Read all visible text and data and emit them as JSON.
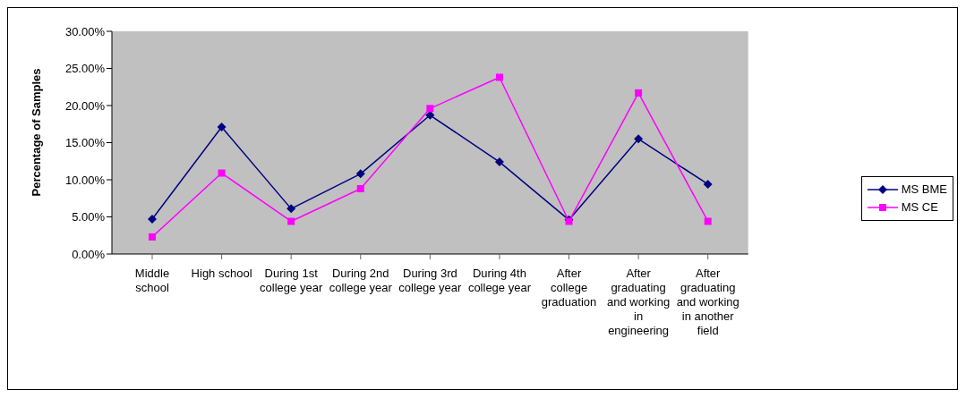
{
  "chart_data": {
    "type": "line",
    "ylabel": "Percentage of  Samples",
    "categories": [
      "Middle school",
      "High school",
      "During 1st college year",
      "During 2nd college year",
      "During 3rd college year",
      "During 4th college year",
      "After college graduation",
      "After graduating and working in engineering",
      "After graduating and working in another field"
    ],
    "series": [
      {
        "name": "MS BME",
        "color": "#000080",
        "marker": "diamond",
        "values": [
          4.7,
          17.1,
          6.1,
          10.8,
          18.7,
          12.4,
          4.6,
          15.5,
          9.4
        ]
      },
      {
        "name": "MS CE",
        "color": "#ff00ff",
        "marker": "square",
        "values": [
          2.3,
          10.9,
          4.4,
          8.8,
          19.6,
          23.8,
          4.4,
          21.7,
          4.4
        ]
      }
    ],
    "ylim": [
      0,
      30
    ],
    "yticks": [
      {
        "value": 0,
        "label": "0.00%"
      },
      {
        "value": 5,
        "label": "5.00%"
      },
      {
        "value": 10,
        "label": "10.00%"
      },
      {
        "value": 15,
        "label": "15.00%"
      },
      {
        "value": 20,
        "label": "20.00%"
      },
      {
        "value": 25,
        "label": "25.00%"
      },
      {
        "value": 30,
        "label": "30.00%"
      }
    ],
    "grid": false,
    "legend": "right",
    "line_style": "solid"
  }
}
